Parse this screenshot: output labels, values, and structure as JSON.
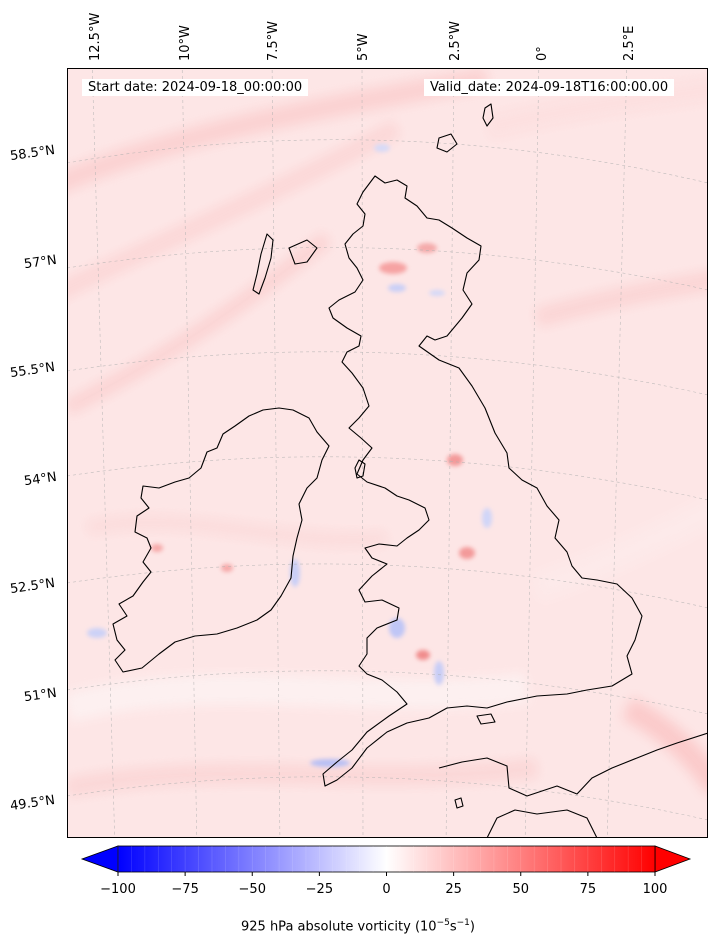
{
  "map": {
    "start_date_text": "Start date: 2024-09-18_00:00:00",
    "valid_date_text": "Valid_date: 2024-09-18T16:00:00.00",
    "field": "925 hPa absolute vorticity",
    "longitude_labels": [
      "12.5°W",
      "10°W",
      "7.5°W",
      "5°W",
      "2.5°W",
      "0°",
      "2.5°E"
    ],
    "latitude_labels": [
      "58.5°N",
      "57°N",
      "55.5°N",
      "54°N",
      "52.5°N",
      "51°N",
      "49.5°N"
    ],
    "colors": {
      "land_outline": "#000000",
      "gridline": "#b0b0b0",
      "background_tint": "#fde4e4"
    }
  },
  "colorbar": {
    "title_prefix": "925 hPa absolute vorticity (10",
    "title_exp1": "−5",
    "title_mid": "s",
    "title_exp2": "−1",
    "title_suffix": ")",
    "min": -100,
    "max": 100,
    "colormap": "bwr",
    "extend": "both",
    "tick_values": [
      -100,
      -75,
      -50,
      -25,
      0,
      25,
      50,
      75,
      100
    ],
    "tick_labels": [
      "−100",
      "−75",
      "−50",
      "−25",
      "0",
      "25",
      "50",
      "75",
      "100"
    ]
  }
}
